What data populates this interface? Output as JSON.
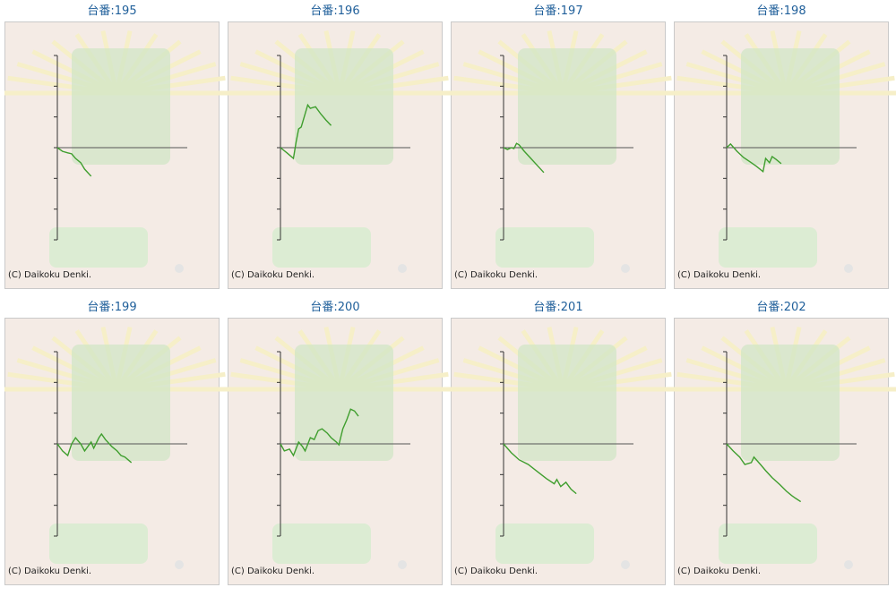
{
  "chart_data": [
    {
      "type": "line",
      "title": "台番:195",
      "annotation": "(C) Daikoku Denki.",
      "color": "#3f9e2e",
      "xlim": [
        0,
        100
      ],
      "ylim": [
        -3,
        3
      ],
      "yticks": [
        -3,
        -2,
        -1,
        0,
        1,
        2,
        3
      ],
      "x": [
        0,
        4,
        8,
        11,
        14,
        18,
        21,
        26
      ],
      "values": [
        0,
        -0.12,
        -0.17,
        -0.2,
        -0.35,
        -0.49,
        -0.7,
        -0.93
      ]
    },
    {
      "type": "line",
      "title": "台番:196",
      "annotation": "(C) Daikoku Denki.",
      "color": "#3f9e2e",
      "xlim": [
        0,
        100
      ],
      "ylim": [
        -3,
        3
      ],
      "yticks": [
        -3,
        -2,
        -1,
        0,
        1,
        2,
        3
      ],
      "x": [
        0,
        5,
        10,
        12,
        14,
        16,
        19,
        21,
        23,
        27,
        31,
        35,
        39
      ],
      "values": [
        0,
        -0.17,
        -0.35,
        0.17,
        0.61,
        0.67,
        1.1,
        1.39,
        1.28,
        1.33,
        1.1,
        0.9,
        0.72
      ]
    },
    {
      "type": "line",
      "title": "台番:197",
      "annotation": "(C) Daikoku Denki.",
      "color": "#3f9e2e",
      "xlim": [
        0,
        100
      ],
      "ylim": [
        -3,
        3
      ],
      "yticks": [
        -3,
        -2,
        -1,
        0,
        1,
        2,
        3
      ],
      "x": [
        0,
        3,
        6,
        8,
        10,
        12,
        16,
        21,
        26,
        31
      ],
      "values": [
        0,
        -0.06,
        0,
        -0.03,
        0.14,
        0.09,
        -0.12,
        -0.35,
        -0.58,
        -0.81
      ]
    },
    {
      "type": "line",
      "title": "台番:198",
      "annotation": "(C) Daikoku Denki.",
      "color": "#3f9e2e",
      "xlim": [
        0,
        100
      ],
      "ylim": [
        -3,
        3
      ],
      "yticks": [
        -3,
        -2,
        -1,
        0,
        1,
        2,
        3
      ],
      "x": [
        0,
        3,
        8,
        13,
        19,
        23,
        28,
        30,
        33,
        35,
        38,
        42
      ],
      "values": [
        0,
        0.12,
        -0.12,
        -0.32,
        -0.49,
        -0.61,
        -0.78,
        -0.35,
        -0.49,
        -0.29,
        -0.38,
        -0.52
      ]
    },
    {
      "type": "line",
      "title": "台番:199",
      "annotation": "(C) Daikoku Denki.",
      "color": "#3f9e2e",
      "xlim": [
        0,
        100
      ],
      "ylim": [
        -3,
        3
      ],
      "yticks": [
        -3,
        -2,
        -1,
        0,
        1,
        2,
        3
      ],
      "x": [
        0,
        4,
        8,
        11,
        14,
        18,
        21,
        26,
        28,
        32,
        34,
        37,
        42,
        46,
        49,
        52,
        57
      ],
      "values": [
        0,
        -0.23,
        -0.38,
        0,
        0.2,
        0,
        -0.23,
        0.06,
        -0.14,
        0.2,
        0.32,
        0.14,
        -0.09,
        -0.23,
        -0.38,
        -0.43,
        -0.61
      ]
    },
    {
      "type": "line",
      "title": "台番:200",
      "annotation": "(C) Daikoku Denki.",
      "color": "#3f9e2e",
      "xlim": [
        0,
        100
      ],
      "ylim": [
        -3,
        3
      ],
      "yticks": [
        -3,
        -2,
        -1,
        0,
        1,
        2,
        3
      ],
      "x": [
        0,
        3,
        7,
        10,
        14,
        17,
        19,
        23,
        26,
        29,
        32,
        36,
        39,
        43,
        45,
        48,
        51,
        54,
        57,
        60
      ],
      "values": [
        0,
        -0.23,
        -0.17,
        -0.38,
        0.06,
        -0.09,
        -0.23,
        0.2,
        0.14,
        0.43,
        0.49,
        0.35,
        0.2,
        0.06,
        -0.03,
        0.49,
        0.78,
        1.13,
        1.07,
        0.9
      ]
    },
    {
      "type": "line",
      "title": "台番:201",
      "annotation": "(C) Daikoku Denki.",
      "color": "#3f9e2e",
      "xlim": [
        0,
        100
      ],
      "ylim": [
        -3,
        3
      ],
      "yticks": [
        -3,
        -2,
        -1,
        0,
        1,
        2,
        3
      ],
      "x": [
        0,
        6,
        12,
        19,
        26,
        33,
        39,
        41,
        44,
        48,
        52,
        56
      ],
      "values": [
        0,
        -0.29,
        -0.52,
        -0.67,
        -0.9,
        -1.13,
        -1.3,
        -1.16,
        -1.39,
        -1.25,
        -1.48,
        -1.62
      ]
    },
    {
      "type": "line",
      "title": "台番:202",
      "annotation": "(C) Daikoku Denki.",
      "color": "#3f9e2e",
      "xlim": [
        0,
        100
      ],
      "ylim": [
        -3,
        3
      ],
      "yticks": [
        -3,
        -2,
        -1,
        0,
        1,
        2,
        3
      ],
      "x": [
        0,
        5,
        10,
        14,
        19,
        21,
        26,
        30,
        35,
        41,
        46,
        50,
        53,
        57
      ],
      "values": [
        0,
        -0.23,
        -0.43,
        -0.67,
        -0.61,
        -0.43,
        -0.67,
        -0.87,
        -1.1,
        -1.33,
        -1.54,
        -1.68,
        -1.77,
        -1.88
      ]
    }
  ]
}
